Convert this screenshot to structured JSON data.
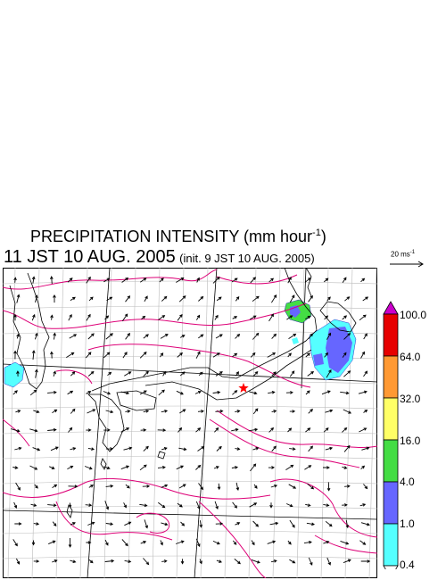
{
  "title": {
    "text": "PRECIPITATION INTENSITY (mm hour",
    "exponent": "-1",
    "close": ")"
  },
  "valid_time": "11 JST 10 AUG. 2005",
  "init_time": "(init. 9 JST 10 AUG. 2005)",
  "reference_vector": {
    "base": "20 ms",
    "exponent": "-1"
  },
  "colorbar": {
    "labels": [
      "100.0",
      "64.0",
      "32.0",
      "16.0",
      "4.0",
      "1.0",
      "0.4"
    ],
    "colors": [
      "#cc00cc",
      "#e60000",
      "#ff9933",
      "#ffff66",
      "#44dd44",
      "#6666ff",
      "#55ffff",
      "#ffffff"
    ]
  },
  "map": {
    "marker_color": "#ff0000",
    "contour_color": "#dd0077",
    "coast_color": "#000000",
    "grid_color": "#bbbbbb"
  }
}
